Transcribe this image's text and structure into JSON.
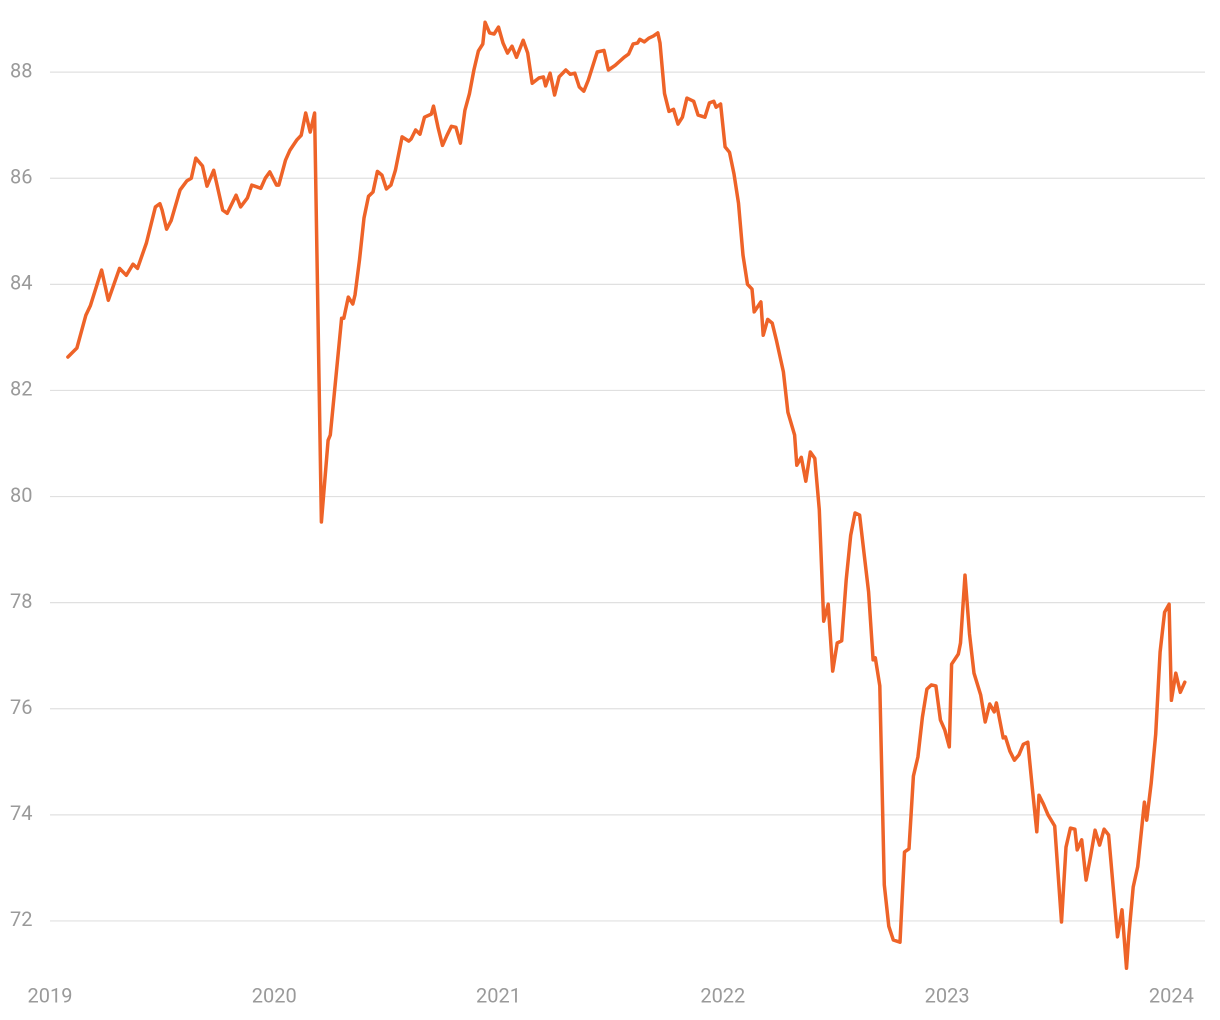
{
  "chart_data": {
    "type": "line",
    "x": [
      2019.08,
      2019.12,
      2019.16,
      2019.18,
      2019.23,
      2019.26,
      2019.31,
      2019.34,
      2019.37,
      2019.39,
      2019.43,
      2019.47,
      2019.49,
      2019.5,
      2019.52,
      2019.54,
      2019.58,
      2019.61,
      2019.63,
      2019.65,
      2019.68,
      2019.7,
      2019.73,
      2019.77,
      2019.79,
      2019.83,
      2019.85,
      2019.88,
      2019.9,
      2019.94,
      2019.96,
      2019.98,
      2020.01,
      2020.02,
      2020.05,
      2020.07,
      2020.1,
      2020.12,
      2020.14,
      2020.16,
      2020.18,
      2020.21,
      2020.24,
      2020.25,
      2020.3,
      2020.31,
      2020.33,
      2020.35,
      2020.36,
      2020.38,
      2020.4,
      2020.42,
      2020.44,
      2020.46,
      2020.48,
      2020.5,
      2020.52,
      2020.54,
      2020.57,
      2020.6,
      2020.61,
      2020.63,
      2020.65,
      2020.67,
      2020.7,
      2020.71,
      2020.73,
      2020.75,
      2020.77,
      2020.79,
      2020.81,
      2020.83,
      2020.85,
      2020.87,
      2020.89,
      2020.91,
      2020.93,
      2020.94,
      2020.96,
      2020.98,
      2021.0,
      2021.02,
      2021.04,
      2021.06,
      2021.08,
      2021.11,
      2021.13,
      2021.15,
      2021.18,
      2021.2,
      2021.21,
      2021.23,
      2021.25,
      2021.27,
      2021.3,
      2021.32,
      2021.34,
      2021.36,
      2021.38,
      2021.4,
      2021.44,
      2021.47,
      2021.49,
      2021.52,
      2021.56,
      2021.58,
      2021.6,
      2021.62,
      2021.63,
      2021.65,
      2021.67,
      2021.69,
      2021.71,
      2021.72,
      2021.74,
      2021.76,
      2021.78,
      2021.8,
      2021.82,
      2021.84,
      2021.87,
      2021.89,
      2021.92,
      2021.94,
      2021.96,
      2021.97,
      2021.99,
      2022.01,
      2022.03,
      2022.05,
      2022.07,
      2022.09,
      2022.11,
      2022.13,
      2022.14,
      2022.17,
      2022.18,
      2022.2,
      2022.22,
      2022.24,
      2022.27,
      2022.29,
      2022.32,
      2022.33,
      2022.35,
      2022.37,
      2022.39,
      2022.41,
      2022.43,
      2022.45,
      2022.47,
      2022.49,
      2022.51,
      2022.53,
      2022.55,
      2022.57,
      2022.59,
      2022.61,
      2022.63,
      2022.65,
      2022.67,
      2022.68,
      2022.7,
      2022.72,
      2022.74,
      2022.76,
      2022.79,
      2022.81,
      2022.83,
      2022.85,
      2022.87,
      2022.89,
      2022.91,
      2022.93,
      2022.95,
      2022.97,
      2022.99,
      2023.01,
      2023.02,
      2023.05,
      2023.06,
      2023.08,
      2023.1,
      2023.12,
      2023.15,
      2023.17,
      2023.19,
      2023.21,
      2023.22,
      2023.25,
      2023.26,
      2023.28,
      2023.3,
      2023.32,
      2023.34,
      2023.36,
      2023.38,
      2023.4,
      2023.41,
      2023.43,
      2023.45,
      2023.48,
      2023.51,
      2023.53,
      2023.55,
      2023.57,
      2023.58,
      2023.6,
      2023.62,
      2023.64,
      2023.66,
      2023.68,
      2023.7,
      2023.72,
      2023.73,
      2023.76,
      2023.78,
      2023.8,
      2023.81,
      2023.83,
      2023.85,
      2023.88,
      2023.89,
      2023.91,
      2023.93,
      2023.95,
      2023.97,
      2023.99,
      2024.0,
      2024.02,
      2024.04,
      2024.06
    ],
    "series": [
      {
        "color": "#ee6328",
        "values": [
          82.63,
          82.8,
          83.42,
          83.6,
          84.27,
          83.7,
          84.3,
          84.17,
          84.38,
          84.3,
          84.78,
          85.46,
          85.52,
          85.4,
          85.04,
          85.2,
          85.78,
          85.95,
          86.0,
          86.38,
          86.23,
          85.85,
          86.15,
          85.4,
          85.34,
          85.68,
          85.46,
          85.63,
          85.87,
          85.81,
          86.0,
          86.12,
          85.87,
          85.87,
          86.34,
          86.53,
          86.72,
          86.81,
          87.23,
          86.87,
          87.23,
          79.52,
          81.06,
          81.16,
          83.36,
          83.36,
          83.76,
          83.63,
          83.8,
          84.46,
          85.25,
          85.66,
          85.74,
          86.13,
          86.06,
          85.8,
          85.87,
          86.15,
          86.78,
          86.7,
          86.74,
          86.91,
          86.83,
          87.15,
          87.21,
          87.36,
          86.96,
          86.62,
          86.81,
          86.98,
          86.96,
          86.66,
          87.28,
          87.59,
          88.04,
          88.4,
          88.53,
          88.94,
          88.74,
          88.72,
          88.85,
          88.55,
          88.36,
          88.49,
          88.28,
          88.6,
          88.36,
          87.79,
          87.89,
          87.91,
          87.74,
          87.98,
          87.57,
          87.91,
          88.04,
          87.96,
          87.98,
          87.72,
          87.64,
          87.85,
          88.38,
          88.41,
          88.04,
          88.13,
          88.28,
          88.34,
          88.53,
          88.55,
          88.62,
          88.57,
          88.64,
          88.68,
          88.74,
          88.55,
          87.6,
          87.26,
          87.3,
          87.02,
          87.15,
          87.51,
          87.45,
          87.19,
          87.15,
          87.42,
          87.45,
          87.34,
          87.4,
          86.59,
          86.49,
          86.08,
          85.53,
          84.55,
          84.0,
          83.91,
          83.48,
          83.67,
          83.04,
          83.34,
          83.27,
          82.93,
          82.35,
          81.59,
          81.16,
          80.59,
          80.74,
          80.29,
          80.84,
          80.72,
          79.75,
          77.65,
          77.97,
          76.71,
          77.24,
          77.28,
          78.43,
          79.27,
          79.69,
          79.65,
          78.92,
          78.2,
          76.92,
          76.96,
          76.43,
          72.68,
          71.9,
          71.64,
          71.6,
          73.3,
          73.36,
          74.73,
          75.09,
          75.84,
          76.37,
          76.45,
          76.43,
          75.79,
          75.6,
          75.28,
          76.84,
          77.03,
          77.24,
          78.52,
          77.41,
          76.67,
          76.26,
          75.75,
          76.09,
          75.94,
          76.11,
          75.45,
          75.47,
          75.2,
          75.03,
          75.13,
          75.33,
          75.37,
          74.51,
          73.68,
          74.37,
          74.2,
          74.0,
          73.79,
          71.98,
          73.39,
          73.75,
          73.73,
          73.34,
          73.53,
          72.77,
          73.22,
          73.71,
          73.43,
          73.73,
          73.62,
          73.15,
          71.7,
          72.21,
          71.11,
          71.7,
          72.64,
          73.02,
          74.24,
          73.9,
          74.6,
          75.52,
          77.07,
          77.82,
          77.97,
          76.16,
          76.67,
          76.31,
          76.5
        ]
      }
    ],
    "xlim": [
      2019,
      2024.15
    ],
    "xticks": [
      2019,
      2020,
      2021,
      2022,
      2023,
      2024
    ],
    "ylim": [
      71,
      89.36
    ],
    "yticks": [
      72,
      74,
      76,
      78,
      80,
      82,
      84,
      86,
      88
    ],
    "grid": true
  }
}
